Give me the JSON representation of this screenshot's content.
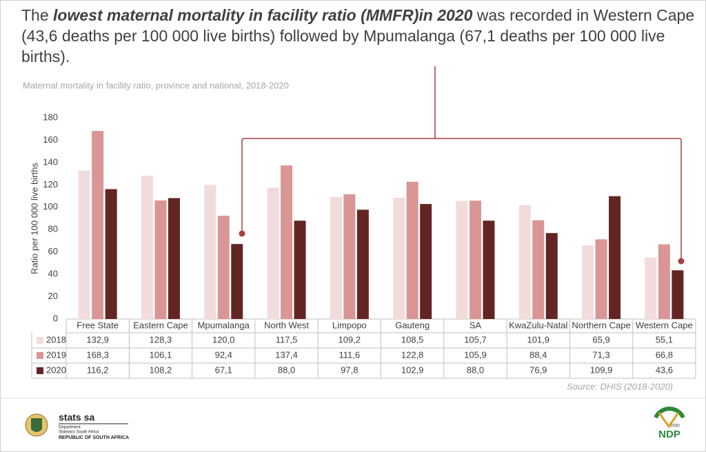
{
  "headline": {
    "lead": "The ",
    "emphasis": "lowest maternal mortality in facility ratio (MMFR)in 2020",
    "rest": " was recorded in Western Cape (43,6 deaths per 100 000 live births) followed by Mpumalanga (67,1 deaths per 100 000 live births)."
  },
  "chart_data": {
    "type": "bar",
    "title": "Maternal mortality in facility ratio, province and national, 2018-2020",
    "y_label": "Ratio per 100 000 live births",
    "categories": [
      "Free State",
      "Eastern Cape",
      "Mpumalanga",
      "North West",
      "Limpopo",
      "Gauteng",
      "SA",
      "KwaZulu-Natal",
      "Northern Cape",
      "Western Cape"
    ],
    "series": [
      {
        "name": "2018",
        "color": "#f2dcdb",
        "values": [
          132.9,
          128.3,
          120.0,
          117.5,
          109.2,
          108.5,
          105.7,
          101.9,
          65.9,
          55.1
        ],
        "value_labels": [
          "132,9",
          "128,3",
          "120,0",
          "117,5",
          "109,2",
          "108,5",
          "105,7",
          "101,9",
          "65,9",
          "55,1"
        ]
      },
      {
        "name": "2019",
        "color": "#d99694",
        "values": [
          168.3,
          106.1,
          92.4,
          137.4,
          111.6,
          122.8,
          105.9,
          88.4,
          71.3,
          66.8
        ],
        "value_labels": [
          "168,3",
          "106,1",
          "92,4",
          "137,4",
          "111,6",
          "122,8",
          "105,9",
          "88,4",
          "71,3",
          "66,8"
        ]
      },
      {
        "name": "2020",
        "color": "#632523",
        "values": [
          116.2,
          108.2,
          67.1,
          88.0,
          97.8,
          102.9,
          88.0,
          76.9,
          109.9,
          43.6
        ],
        "value_labels": [
          "116,2",
          "108,2",
          "67,1",
          "88,0",
          "97,8",
          "102,9",
          "88,0",
          "76,9",
          "109,9",
          "43,6"
        ]
      }
    ],
    "ylim": [
      0,
      180
    ],
    "yticks": [
      0,
      20,
      40,
      60,
      80,
      100,
      120,
      140,
      160,
      180
    ],
    "grid": false,
    "source": "Source: DHIS (2018-2020)"
  },
  "footer": {
    "org": "stats sa",
    "dept": "Department:",
    "dept_name": "Statistics South Africa",
    "country": "REPUBLIC OF SOUTH AFRICA",
    "ndp": "NDP",
    "ndp_year": "2030"
  }
}
